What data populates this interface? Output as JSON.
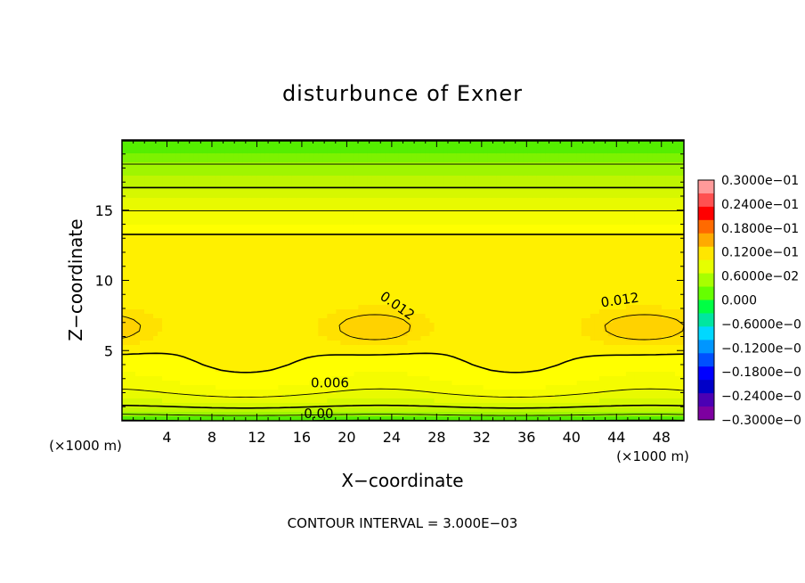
{
  "chart_data": {
    "type": "heatmap",
    "title": "disturbunce of Exner",
    "xlabel": "X−coordinate",
    "ylabel": "Z−coordinate",
    "x_unit_left": "(×1000 m)",
    "x_unit_right": "(×1000 m)",
    "xlim": [
      0,
      50
    ],
    "ylim": [
      0,
      20
    ],
    "x_ticks": [
      4,
      8,
      12,
      16,
      20,
      24,
      28,
      32,
      36,
      40,
      44,
      48
    ],
    "x_tick_labels": [
      "4",
      "8",
      "12",
      "16",
      "20",
      "24",
      "28",
      "32",
      "36",
      "40",
      "44",
      "48"
    ],
    "y_ticks": [
      5,
      10,
      15
    ],
    "y_tick_labels": [
      "5",
      "10",
      "15"
    ],
    "footer": "CONTOUR INTERVAL = 3.000E−03",
    "contour_interval": 0.003,
    "contour_labels": [
      {
        "text": "0.012",
        "x": 24.5,
        "z": 8.2,
        "angle": 35
      },
      {
        "text": "0.012",
        "x": 44.3,
        "z": 8.6,
        "angle": -8
      },
      {
        "text": "0.006",
        "x": 18.5,
        "z": 2.7,
        "angle": 0
      },
      {
        "text": "0.00",
        "x": 17.5,
        "z": 0.5,
        "angle": 0
      }
    ],
    "colorbar": {
      "labels": [
        "0.3000e−01",
        "0.2400e−01",
        "0.1800e−01",
        "0.1200e−01",
        "0.6000e−02",
        "0.000",
        "−0.6000e−0",
        "−0.1200e−0",
        "−0.1800e−0",
        "−0.2400e−0",
        "−0.3000e−0"
      ],
      "values": [
        0.03,
        0.024,
        0.018,
        0.012,
        0.006,
        0.0,
        -0.006,
        -0.012,
        -0.018,
        -0.024,
        -0.03
      ],
      "colors": [
        "#ff9a9a",
        "#ff5050",
        "#ff0000",
        "#ff6a00",
        "#ffaa00",
        "#ffe600",
        "#e6ff00",
        "#a8ff00",
        "#66ff00",
        "#00ff44",
        "#00e6a0",
        "#00d8ff",
        "#0096ff",
        "#0050ff",
        "#0000ff",
        "#0000c8",
        "#4b00b4",
        "#7d00a0"
      ]
    },
    "field_levels": [
      {
        "min": -0.03,
        "max": -0.003,
        "color": "#00c800"
      },
      {
        "min": -0.003,
        "max": -0.0015,
        "color": "#00dd22"
      },
      {
        "min": -0.0015,
        "max": 0.0,
        "color": "#22e600"
      },
      {
        "min": 0.0,
        "max": 0.0015,
        "color": "#55ee00"
      },
      {
        "min": 0.0015,
        "max": 0.003,
        "color": "#7df200"
      },
      {
        "min": 0.003,
        "max": 0.0045,
        "color": "#a0f500"
      },
      {
        "min": 0.0045,
        "max": 0.006,
        "color": "#bff500"
      },
      {
        "min": 0.006,
        "max": 0.0075,
        "color": "#d6f800"
      },
      {
        "min": 0.0075,
        "max": 0.009,
        "color": "#e8fa00"
      },
      {
        "min": 0.009,
        "max": 0.0105,
        "color": "#f5fc00"
      },
      {
        "min": 0.0105,
        "max": 0.012,
        "color": "#ffff00"
      },
      {
        "min": 0.012,
        "max": 0.0135,
        "color": "#fff000"
      },
      {
        "min": 0.0135,
        "max": 0.015,
        "color": "#ffe100"
      },
      {
        "min": 0.015,
        "max": 0.03,
        "color": "#ffd200"
      }
    ]
  }
}
